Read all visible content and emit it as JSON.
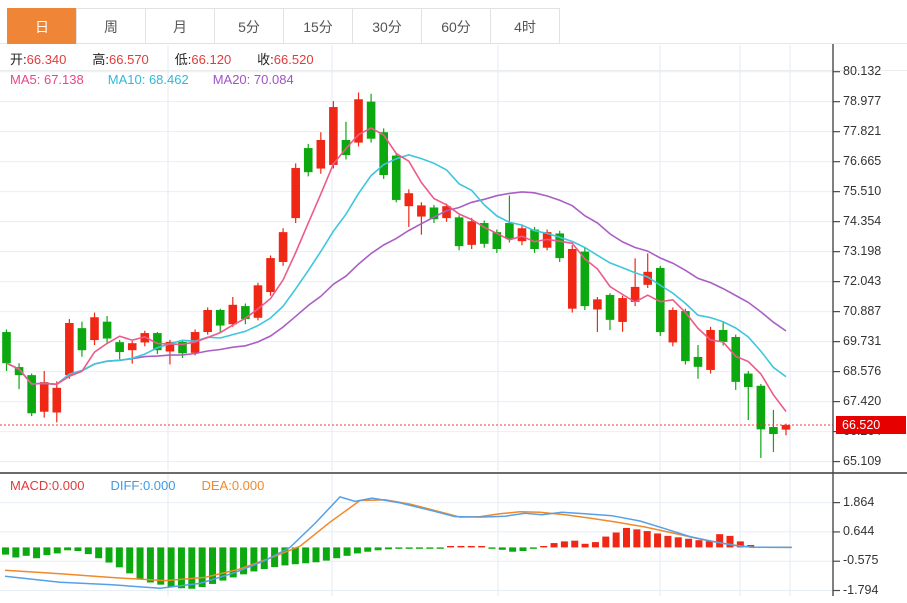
{
  "tabs": {
    "items": [
      {
        "label": "日",
        "active": true
      },
      {
        "label": "周",
        "active": false
      },
      {
        "label": "月",
        "active": false
      },
      {
        "label": "5分",
        "active": false
      },
      {
        "label": "15分",
        "active": false
      },
      {
        "label": "30分",
        "active": false
      },
      {
        "label": "60分",
        "active": false
      },
      {
        "label": "4时",
        "active": false
      }
    ]
  },
  "ohlc_bar": {
    "open_label": "开:",
    "open_value": "66.340",
    "high_label": "高:",
    "high_value": "66.570",
    "low_label": "低:",
    "low_value": "66.120",
    "close_label": "收:",
    "close_value": "66.520"
  },
  "ma_bar": {
    "ma5_label": "MA5:",
    "ma5_value": "67.138",
    "ma10_label": "MA10:",
    "ma10_value": "68.462",
    "ma20_label": "MA20:",
    "ma20_value": "70.084"
  },
  "macd_bar": {
    "macd_label": "MACD:",
    "macd_value": "0.000",
    "diff_label": "DIFF:",
    "diff_value": "0.000",
    "dea_label": "DEA:",
    "dea_value": "0.000"
  },
  "price_tag": "66.520",
  "colors": {
    "up": "#ef2714",
    "down": "#0ba80f",
    "ma5": "#ee5a8a",
    "ma10": "#3ec6de",
    "ma20": "#aa5fc3",
    "diff": "#55a0e8",
    "dea": "#f0892a",
    "tab_active": "#ef8536",
    "value_red": "#e23b3b",
    "grid": "#e8eef6",
    "vgrid": "#e3ebf3",
    "axis": "#4a4a4a",
    "tag_bg": "#e60000",
    "dotted_price": "#f03b30",
    "zero_dotted": "#9fd8e8"
  },
  "chart_data": [
    {
      "type": "candlestick",
      "title": "daily K-line, main pane",
      "ylabel": "price",
      "y_ticks": [
        80.132,
        78.977,
        77.821,
        76.665,
        75.51,
        74.354,
        73.198,
        72.043,
        70.887,
        69.731,
        68.576,
        67.42,
        66.264,
        65.109
      ],
      "current_price": 66.52,
      "covered_tick_label": "66.264",
      "ma_periods": [
        5,
        10,
        20
      ],
      "ma_last_values": {
        "ma5": 67.138,
        "ma10": 68.462,
        "ma20": 70.084
      },
      "candles_format": "[open, high, low, close] ; close>open drawn red (up), close<open drawn green (down)",
      "candles": [
        [
          70.1,
          70.2,
          68.6,
          68.9
        ],
        [
          68.75,
          68.9,
          67.9,
          68.44
        ],
        [
          68.44,
          68.5,
          66.86,
          66.97
        ],
        [
          67.03,
          68.6,
          66.8,
          68.17
        ],
        [
          67.0,
          68.2,
          66.62,
          67.95
        ],
        [
          68.44,
          70.6,
          68.3,
          70.45
        ],
        [
          70.25,
          70.5,
          69.15,
          69.4
        ],
        [
          69.79,
          70.85,
          69.6,
          70.67
        ],
        [
          70.5,
          70.72,
          69.68,
          69.85
        ],
        [
          69.71,
          69.8,
          69.05,
          69.33
        ],
        [
          69.4,
          69.75,
          68.88,
          69.67
        ],
        [
          69.7,
          70.15,
          69.55,
          70.06
        ],
        [
          70.06,
          70.1,
          69.25,
          69.4
        ],
        [
          69.35,
          69.8,
          68.85,
          69.72
        ],
        [
          69.72,
          69.8,
          69.1,
          69.28
        ],
        [
          69.3,
          70.2,
          69.2,
          70.1
        ],
        [
          70.1,
          71.05,
          70.0,
          70.95
        ],
        [
          70.95,
          71.0,
          70.1,
          70.35
        ],
        [
          70.4,
          71.45,
          70.3,
          71.15
        ],
        [
          71.1,
          71.2,
          70.4,
          70.6
        ],
        [
          70.65,
          72.0,
          70.55,
          71.9
        ],
        [
          71.64,
          73.05,
          71.5,
          72.95
        ],
        [
          72.8,
          74.1,
          72.65,
          73.95
        ],
        [
          74.49,
          76.6,
          74.3,
          76.42
        ],
        [
          77.19,
          77.35,
          76.1,
          76.26
        ],
        [
          76.4,
          77.8,
          76.2,
          77.5
        ],
        [
          76.54,
          79.0,
          76.4,
          78.77
        ],
        [
          77.5,
          78.2,
          76.75,
          76.92
        ],
        [
          77.4,
          79.33,
          77.25,
          79.07
        ],
        [
          78.98,
          79.28,
          77.4,
          77.55
        ],
        [
          77.8,
          77.95,
          76.0,
          76.15
        ],
        [
          76.9,
          77.0,
          75.1,
          75.19
        ],
        [
          74.95,
          75.6,
          74.15,
          75.45
        ],
        [
          74.55,
          75.1,
          73.85,
          74.98
        ],
        [
          74.9,
          75.0,
          74.3,
          74.45
        ],
        [
          74.49,
          75.05,
          74.35,
          74.95
        ],
        [
          74.52,
          74.6,
          73.25,
          73.41
        ],
        [
          73.46,
          74.5,
          73.3,
          74.37
        ],
        [
          74.3,
          74.4,
          73.35,
          73.5
        ],
        [
          73.95,
          74.05,
          73.15,
          73.3
        ],
        [
          74.3,
          75.36,
          73.55,
          73.7
        ],
        [
          73.6,
          74.25,
          73.45,
          74.1
        ],
        [
          74.05,
          74.15,
          73.15,
          73.3
        ],
        [
          73.35,
          74.05,
          73.25,
          73.95
        ],
        [
          73.9,
          74.0,
          72.8,
          72.95
        ],
        [
          71.0,
          73.45,
          70.85,
          73.3
        ],
        [
          73.2,
          73.35,
          70.95,
          71.1
        ],
        [
          70.97,
          71.45,
          70.1,
          71.36
        ],
        [
          71.53,
          71.6,
          70.18,
          70.57
        ],
        [
          70.49,
          71.5,
          70.11,
          71.41
        ],
        [
          71.26,
          72.94,
          71.1,
          71.84
        ],
        [
          71.92,
          73.13,
          71.8,
          72.42
        ],
        [
          72.57,
          72.65,
          69.95,
          70.1
        ],
        [
          69.7,
          71.05,
          69.55,
          70.95
        ],
        [
          70.91,
          71.0,
          68.85,
          68.98
        ],
        [
          69.14,
          69.6,
          68.3,
          68.76
        ],
        [
          68.64,
          70.3,
          68.5,
          70.18
        ],
        [
          70.18,
          70.5,
          69.58,
          69.72
        ],
        [
          69.91,
          70.0,
          67.87,
          68.18
        ],
        [
          68.5,
          68.6,
          66.71,
          67.98
        ],
        [
          68.03,
          68.1,
          65.25,
          66.35
        ],
        [
          66.44,
          67.1,
          65.48,
          66.17
        ],
        [
          66.34,
          66.57,
          66.12,
          66.52
        ]
      ]
    },
    {
      "type": "bar",
      "title": "MACD pane",
      "y_ticks": [
        1.864,
        0.644,
        -0.575,
        -1.794
      ],
      "histogram_note": "positive bars red, negative bars green",
      "values": [
        -0.3,
        -0.42,
        -0.35,
        -0.45,
        -0.32,
        -0.25,
        -0.12,
        -0.15,
        -0.28,
        -0.45,
        -0.63,
        -0.83,
        -1.08,
        -1.32,
        -1.46,
        -1.55,
        -1.63,
        -1.7,
        -1.72,
        -1.65,
        -1.52,
        -1.38,
        -1.25,
        -1.12,
        -1.0,
        -0.9,
        -0.82,
        -0.75,
        -0.7,
        -0.66,
        -0.62,
        -0.55,
        -0.45,
        -0.35,
        -0.25,
        -0.18,
        -0.12,
        -0.08,
        -0.05,
        -0.04,
        -0.03,
        -0.03,
        -0.04,
        0.04,
        0.06,
        0.05,
        0.04,
        -0.04,
        -0.1,
        -0.18,
        -0.15,
        -0.06,
        0.05,
        0.18,
        0.25,
        0.28,
        0.15,
        0.22,
        0.45,
        0.62,
        0.81,
        0.75,
        0.68,
        0.58,
        0.48,
        0.42,
        0.36,
        0.3,
        0.26,
        0.55,
        0.48,
        0.25,
        0.1
      ],
      "diff_line": [
        [
          5,
          -1.2
        ],
        [
          60,
          -1.45
        ],
        [
          110,
          -1.55
        ],
        [
          160,
          -1.7
        ],
        [
          200,
          -1.5
        ],
        [
          235,
          -1.05
        ],
        [
          265,
          -0.55
        ],
        [
          290,
          0.0
        ],
        [
          315,
          1.0
        ],
        [
          340,
          2.1
        ],
        [
          355,
          1.92
        ],
        [
          372,
          2.05
        ],
        [
          400,
          1.85
        ],
        [
          430,
          1.55
        ],
        [
          455,
          1.28
        ],
        [
          480,
          1.26
        ],
        [
          505,
          1.3
        ],
        [
          525,
          1.42
        ],
        [
          542,
          1.36
        ],
        [
          562,
          1.46
        ],
        [
          585,
          1.4
        ],
        [
          612,
          1.32
        ],
        [
          640,
          1.1
        ],
        [
          665,
          0.78
        ],
        [
          690,
          0.45
        ],
        [
          712,
          0.25
        ],
        [
          735,
          0.08
        ],
        [
          752,
          0.01
        ],
        [
          792,
          0.0
        ]
      ],
      "dea_line": [
        [
          5,
          -0.95
        ],
        [
          60,
          -1.1
        ],
        [
          110,
          -1.25
        ],
        [
          165,
          -1.38
        ],
        [
          205,
          -1.25
        ],
        [
          240,
          -0.9
        ],
        [
          270,
          -0.45
        ],
        [
          300,
          0.05
        ],
        [
          330,
          1.05
        ],
        [
          360,
          1.95
        ],
        [
          385,
          1.98
        ],
        [
          410,
          1.8
        ],
        [
          440,
          1.48
        ],
        [
          460,
          1.26
        ],
        [
          480,
          1.28
        ],
        [
          500,
          1.4
        ],
        [
          520,
          1.48
        ],
        [
          540,
          1.46
        ],
        [
          565,
          1.36
        ],
        [
          590,
          1.22
        ],
        [
          615,
          1.06
        ],
        [
          645,
          0.85
        ],
        [
          675,
          0.58
        ],
        [
          700,
          0.35
        ],
        [
          722,
          0.18
        ],
        [
          740,
          0.06
        ],
        [
          755,
          0.01
        ],
        [
          790,
          0.0
        ]
      ]
    }
  ]
}
